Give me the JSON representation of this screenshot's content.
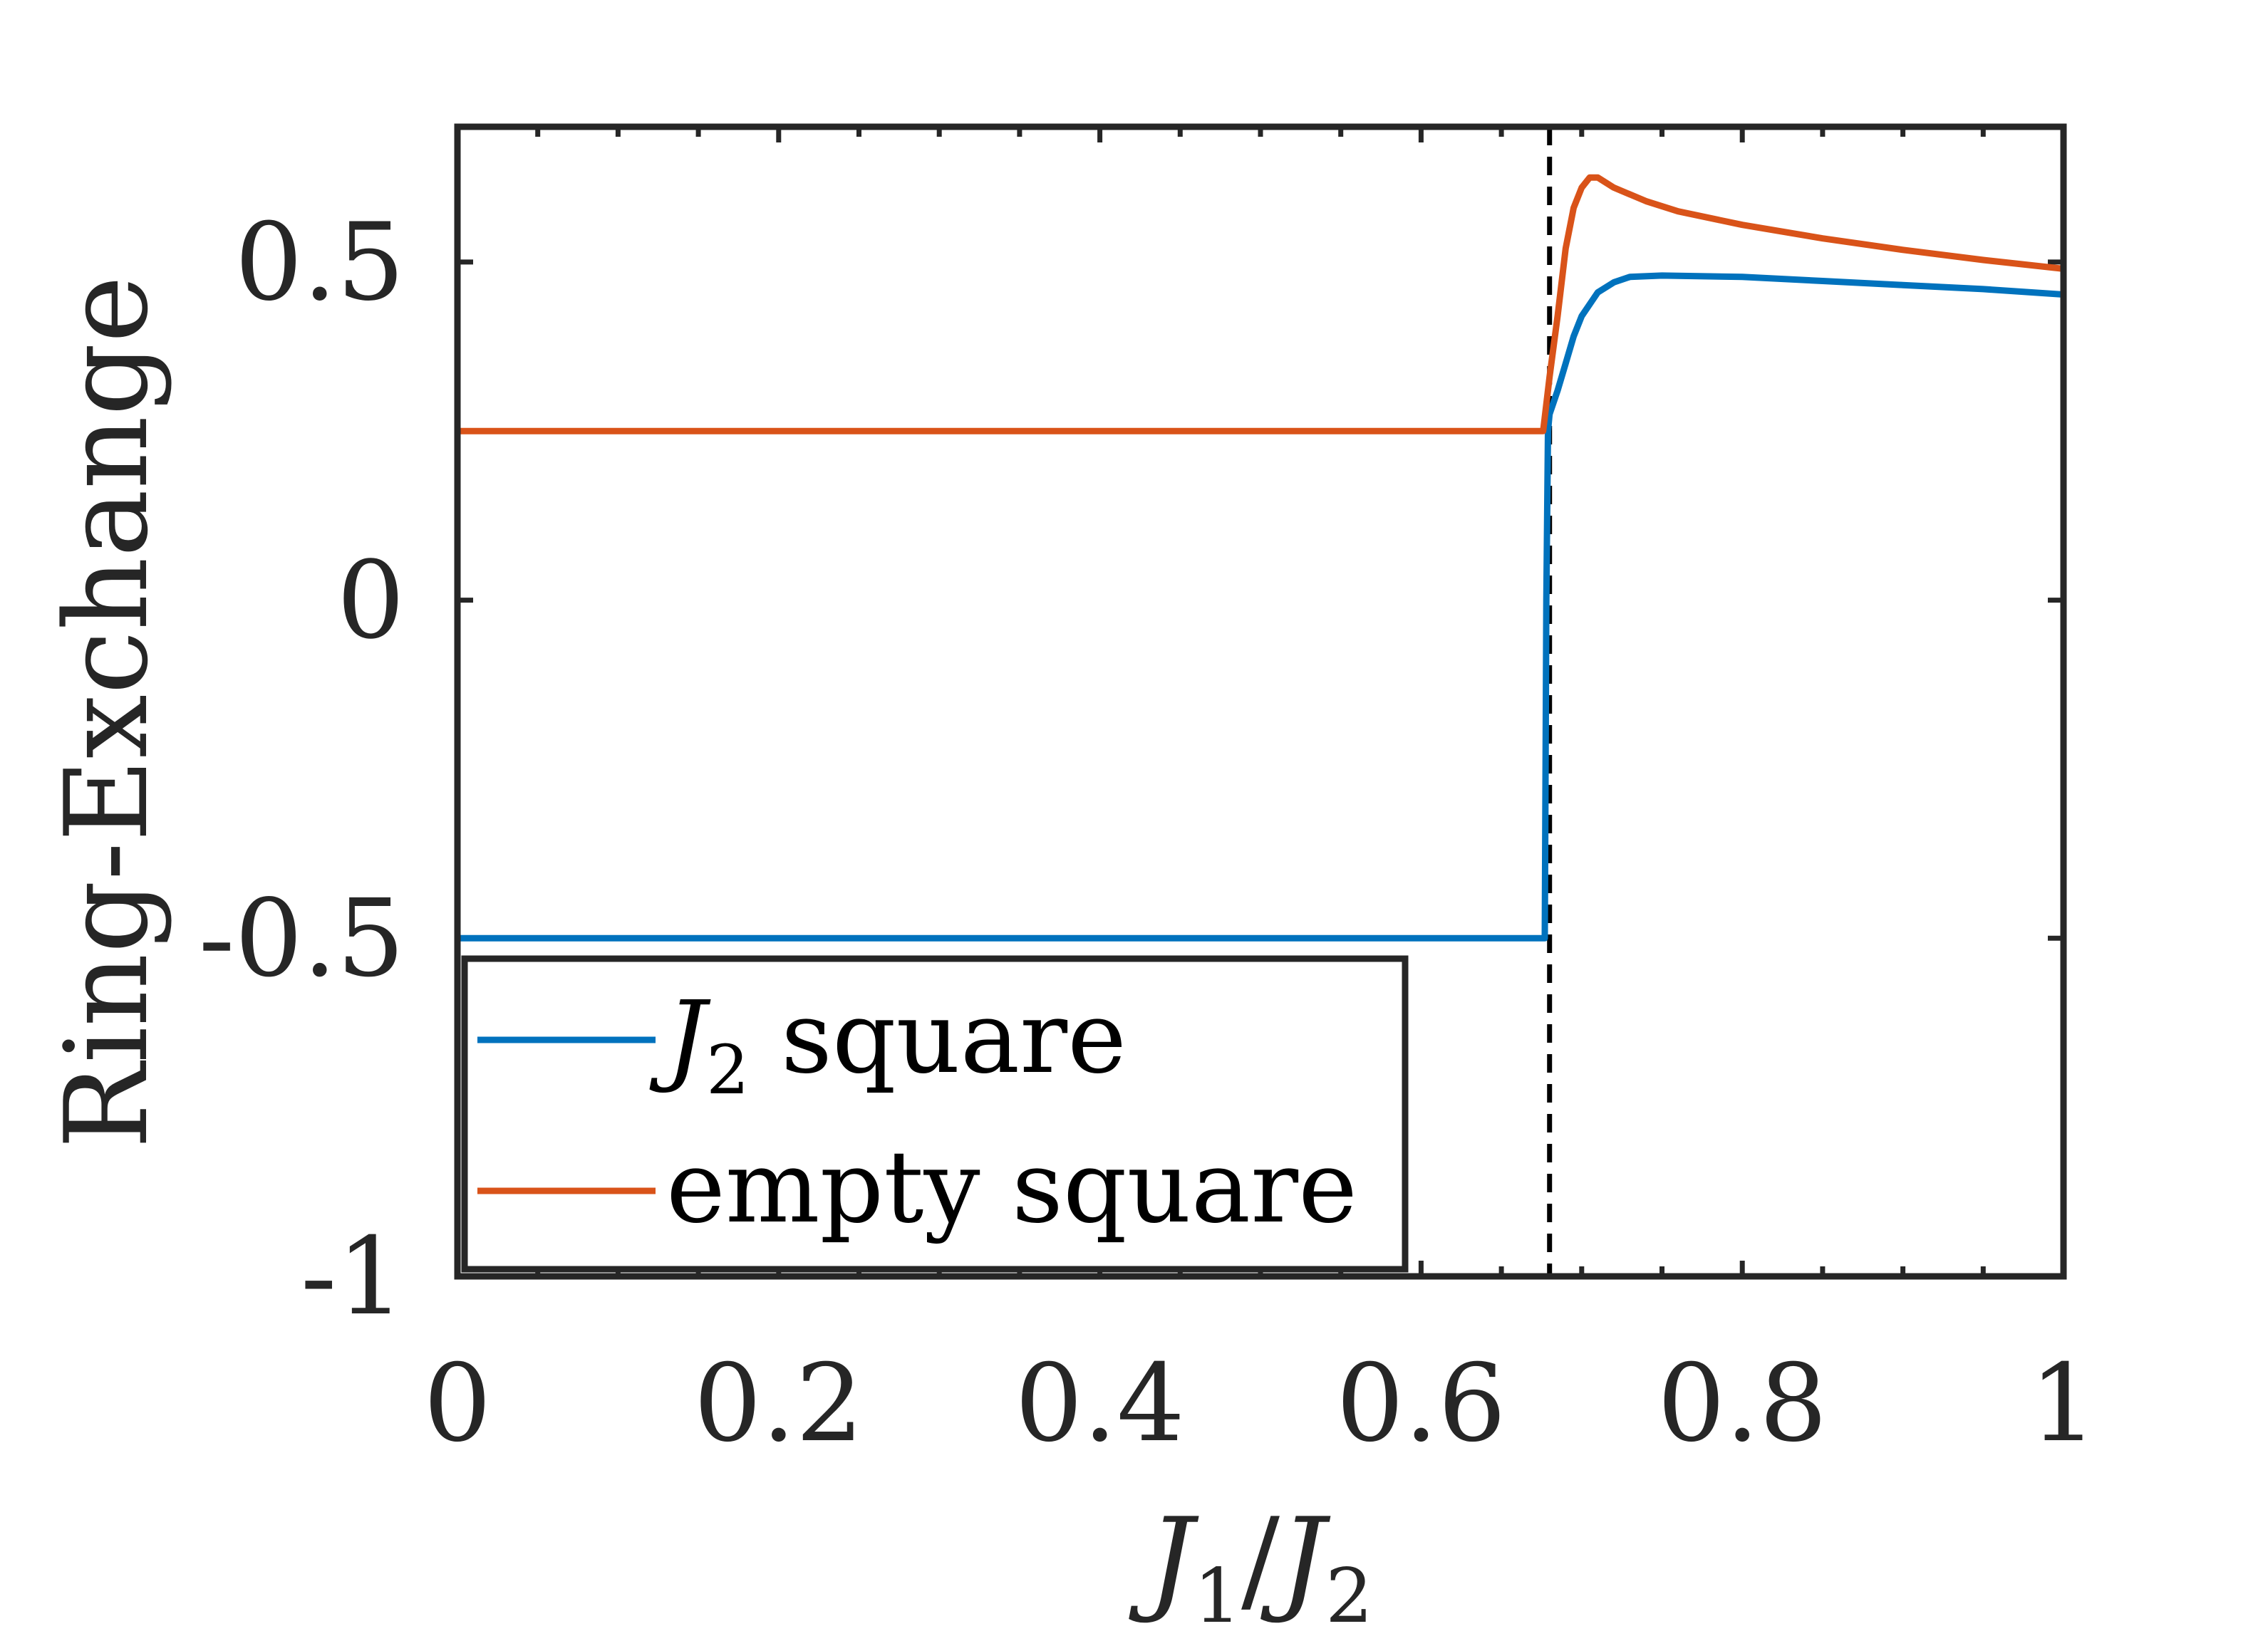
{
  "chart_data": {
    "type": "line",
    "xlabel_main": "J",
    "xlabel_sub1": "1",
    "xlabel_slash": "/",
    "xlabel_sub2": "2",
    "ylabel": "Ring-Exchange",
    "xlim": [
      0,
      1
    ],
    "ylim": [
      -1,
      0.7
    ],
    "xticks": [
      0,
      0.2,
      0.4,
      0.6,
      0.8,
      1
    ],
    "xtick_labels": [
      "0",
      "0.2",
      "0.4",
      "0.6",
      "0.8",
      "1"
    ],
    "yticks": [
      -1,
      -0.5,
      0,
      0.5
    ],
    "ytick_labels": [
      "-1",
      "-0.5",
      "0",
      "0.5"
    ],
    "vline_x": 0.68,
    "grid": false,
    "legend_position": "bottom-left",
    "series": [
      {
        "name_main": "J",
        "name_sub": "2",
        "name_rest": " square",
        "color": "#0072BD",
        "points": [
          [
            0,
            -0.5
          ],
          [
            0.677,
            -0.5
          ],
          [
            0.678,
            0.0
          ],
          [
            0.679,
            0.25
          ],
          [
            0.68,
            0.275
          ],
          [
            0.685,
            0.31
          ],
          [
            0.69,
            0.35
          ],
          [
            0.695,
            0.39
          ],
          [
            0.7,
            0.42
          ],
          [
            0.71,
            0.455
          ],
          [
            0.72,
            0.47
          ],
          [
            0.73,
            0.478
          ],
          [
            0.75,
            0.48
          ],
          [
            0.8,
            0.478
          ],
          [
            0.85,
            0.472
          ],
          [
            0.9,
            0.466
          ],
          [
            0.95,
            0.46
          ],
          [
            1.0,
            0.452
          ]
        ]
      },
      {
        "name_main": "",
        "name_sub": "",
        "name_rest": "empty square",
        "color": "#D95319",
        "points": [
          [
            0,
            0.25
          ],
          [
            0.676,
            0.25
          ],
          [
            0.68,
            0.33
          ],
          [
            0.685,
            0.42
          ],
          [
            0.69,
            0.52
          ],
          [
            0.695,
            0.58
          ],
          [
            0.7,
            0.61
          ],
          [
            0.705,
            0.625
          ],
          [
            0.71,
            0.625
          ],
          [
            0.72,
            0.61
          ],
          [
            0.74,
            0.59
          ],
          [
            0.76,
            0.575
          ],
          [
            0.8,
            0.555
          ],
          [
            0.85,
            0.535
          ],
          [
            0.9,
            0.518
          ],
          [
            0.95,
            0.503
          ],
          [
            1.0,
            0.49
          ]
        ]
      }
    ]
  }
}
